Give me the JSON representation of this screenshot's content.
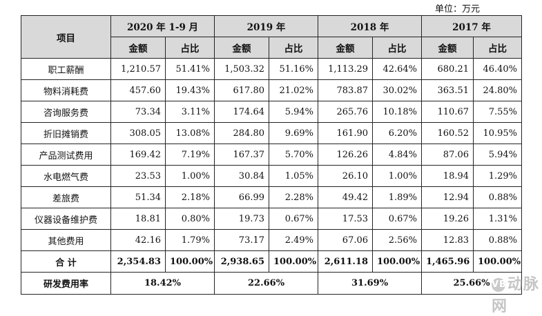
{
  "unit_label": "单位：万元",
  "header": {
    "item_label": "项目",
    "periods": [
      "2020 年 1-9 月",
      "2019 年",
      "2018 年",
      "2017 年"
    ],
    "amount_label": "金额",
    "ratio_label": "占比"
  },
  "rows": [
    {
      "name": "职工薪酬",
      "values": [
        "1,210.57",
        "51.41%",
        "1,503.32",
        "51.16%",
        "1,113.29",
        "42.64%",
        "680.21",
        "46.40%"
      ]
    },
    {
      "name": "物料消耗费",
      "values": [
        "457.60",
        "19.43%",
        "617.80",
        "21.02%",
        "783.87",
        "30.02%",
        "363.51",
        "24.80%"
      ]
    },
    {
      "name": "咨询服务费",
      "values": [
        "73.34",
        "3.11%",
        "174.64",
        "5.94%",
        "265.76",
        "10.18%",
        "110.67",
        "7.55%"
      ]
    },
    {
      "name": "折旧摊销费",
      "values": [
        "308.05",
        "13.08%",
        "284.80",
        "9.69%",
        "161.90",
        "6.20%",
        "160.52",
        "10.95%"
      ]
    },
    {
      "name": "产品测试费用",
      "values": [
        "169.42",
        "7.19%",
        "167.37",
        "5.70%",
        "126.26",
        "4.84%",
        "87.06",
        "5.94%"
      ]
    },
    {
      "name": "水电燃气费",
      "values": [
        "23.53",
        "1.00%",
        "30.84",
        "1.05%",
        "26.10",
        "1.00%",
        "18.94",
        "1.29%"
      ]
    },
    {
      "name": "差旅费",
      "values": [
        "51.34",
        "2.18%",
        "66.99",
        "2.28%",
        "49.42",
        "1.89%",
        "12.94",
        "0.88%"
      ]
    },
    {
      "name": "仪器设备维护费",
      "values": [
        "18.81",
        "0.80%",
        "19.73",
        "0.67%",
        "17.53",
        "0.67%",
        "19.26",
        "1.31%"
      ]
    },
    {
      "name": "其他费用",
      "values": [
        "42.16",
        "1.79%",
        "73.17",
        "2.49%",
        "67.06",
        "2.56%",
        "12.83",
        "0.88%"
      ]
    }
  ],
  "total": {
    "name": "合 计",
    "values": [
      "2,354.83",
      "100.00%",
      "2,938.65",
      "100.00%",
      "2,611.18",
      "100.00%",
      "1,465.96",
      "100.00%"
    ]
  },
  "ratio_row": {
    "name": "研发费用率",
    "values": [
      "18.42%",
      "22.66%",
      "31.69%",
      "25.66%"
    ]
  },
  "watermark": "动脉网"
}
